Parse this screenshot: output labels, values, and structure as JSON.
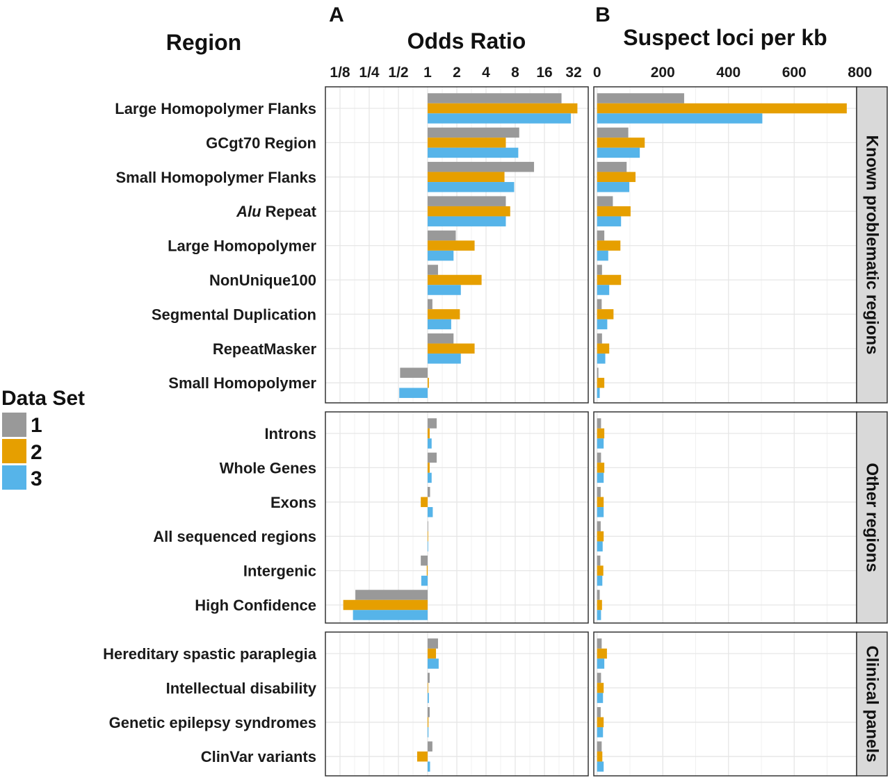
{
  "panel_letters": {
    "a": "A",
    "b": "B"
  },
  "headers": {
    "region": "Region",
    "odds_ratio": "Odds Ratio",
    "suspect": "Suspect loci per kb"
  },
  "legend": {
    "title": "Data Set",
    "entries": [
      "1",
      "2",
      "3"
    ]
  },
  "colors": {
    "set1": "#999999",
    "set2": "#E69F00",
    "set3": "#56B4E9",
    "strip_bg": "#d9d9d9",
    "grid": "#e6e6e6",
    "panel_border": "#333333"
  },
  "chart_data": [
    {
      "type": "bar",
      "orientation": "horizontal",
      "panel": "A",
      "xlabel": "Odds Ratio",
      "x_scale": "log2",
      "xlim": [
        0.0883883,
        45.2548
      ],
      "xticks": [
        0.125,
        0.25,
        0.5,
        1,
        2,
        4,
        8,
        16,
        32
      ],
      "xtick_labels": [
        "1/8",
        "1/4",
        "1/2",
        "1",
        "2",
        "4",
        "8",
        "16",
        "32"
      ],
      "grid": true,
      "facets": [
        {
          "name": "Known problematic regions",
          "categories": [
            "Large Homopolymer Flanks",
            "GCgt70 Region",
            "Small Homopolymer Flanks",
            "Alu Repeat",
            "Large Homopolymer",
            "NonUnique100",
            "Segmental Duplication",
            "RepeatMasker",
            "Small Homopolymer"
          ],
          "series": [
            {
              "name": "1",
              "values": [
                24,
                8.8,
                12.5,
                6.4,
                1.95,
                1.28,
                1.12,
                1.85,
                0.52
              ]
            },
            {
              "name": "2",
              "values": [
                35,
                6.4,
                6.2,
                7.1,
                3.05,
                3.6,
                2.15,
                3.05,
                1.03
              ]
            },
            {
              "name": "3",
              "values": [
                30,
                8.6,
                7.8,
                6.4,
                1.85,
                2.2,
                1.75,
                2.2,
                0.51
              ]
            }
          ]
        },
        {
          "name": "Other regions",
          "categories": [
            "Introns",
            "Whole Genes",
            "Exons",
            "All sequenced regions",
            "Intergenic",
            "High Confidence"
          ],
          "series": [
            {
              "name": "1",
              "values": [
                1.24,
                1.24,
                1.06,
                1.0,
                0.85,
                0.18
              ]
            },
            {
              "name": "2",
              "values": [
                1.05,
                1.05,
                0.85,
                1.0,
                0.98,
                0.135
              ]
            },
            {
              "name": "3",
              "values": [
                1.1,
                1.1,
                1.13,
                1.0,
                0.86,
                0.17
              ]
            }
          ]
        },
        {
          "name": "Clinical panels",
          "categories": [
            "Hereditary spastic paraplegia",
            "Intellectual disability",
            "Genetic epilepsy syndromes",
            "ClinVar variants"
          ],
          "series": [
            {
              "name": "1",
              "values": [
                1.28,
                1.05,
                1.05,
                1.12
              ]
            },
            {
              "name": "2",
              "values": [
                1.22,
                1.01,
                1.02,
                0.78
              ]
            },
            {
              "name": "3",
              "values": [
                1.3,
                1.03,
                1.02,
                1.06
              ]
            }
          ]
        }
      ]
    },
    {
      "type": "bar",
      "orientation": "horizontal",
      "panel": "B",
      "xlabel": "Suspect loci per kb",
      "xlim": [
        -10,
        790
      ],
      "xticks": [
        0,
        200,
        400,
        600,
        800
      ],
      "grid": true,
      "facets": [
        {
          "name": "Known problematic regions",
          "categories": [
            "Large Homopolymer Flanks",
            "GCgt70 Region",
            "Small Homopolymer Flanks",
            "Alu Repeat",
            "Large Homopolymer",
            "NonUnique100",
            "Segmental Duplication",
            "RepeatMasker",
            "Small Homopolymer"
          ],
          "series": [
            {
              "name": "1",
              "values": [
                265,
                95,
                90,
                48,
                22,
                15,
                14,
                15,
                4
              ]
            },
            {
              "name": "2",
              "values": [
                760,
                145,
                117,
                102,
                71,
                73,
                50,
                37,
                22
              ]
            },
            {
              "name": "3",
              "values": [
                503,
                130,
                98,
                73,
                34,
                37,
                31,
                25,
                8
              ]
            }
          ]
        },
        {
          "name": "Other regions",
          "categories": [
            "Introns",
            "Whole Genes",
            "Exons",
            "All sequenced regions",
            "Intergenic",
            "High Confidence"
          ],
          "series": [
            {
              "name": "1",
              "values": [
                12,
                12,
                11,
                11,
                10,
                8
              ]
            },
            {
              "name": "2",
              "values": [
                22,
                22,
                20,
                20,
                19,
                15
              ]
            },
            {
              "name": "3",
              "values": [
                20,
                20,
                20,
                17,
                16,
                12
              ]
            }
          ]
        },
        {
          "name": "Clinical panels",
          "categories": [
            "Hereditary spastic paraplegia",
            "Intellectual disability",
            "Genetic epilepsy syndromes",
            "ClinVar variants"
          ],
          "series": [
            {
              "name": "1",
              "values": [
                14,
                12,
                11,
                14
              ]
            },
            {
              "name": "2",
              "values": [
                30,
                20,
                20,
                16
              ]
            },
            {
              "name": "3",
              "values": [
                22,
                18,
                18,
                20
              ]
            }
          ]
        }
      ]
    }
  ]
}
